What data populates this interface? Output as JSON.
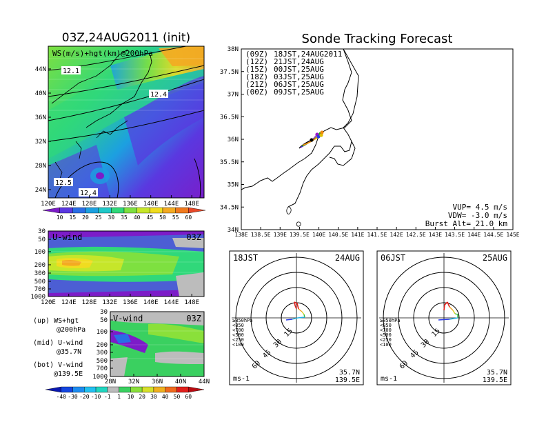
{
  "left_map": {
    "title": "03Z,24AUG2011 (init)",
    "field_label": "WS(m/s)+hgt(km)@200hPa",
    "lon_ticks": [
      "120E",
      "124E",
      "128E",
      "132E",
      "136E",
      "140E",
      "144E",
      "148E"
    ],
    "lat_ticks": [
      "44N",
      "40N",
      "36N",
      "32N",
      "28N",
      "24N"
    ],
    "contour_labels": [
      "12.1",
      "12.4",
      "12.5",
      "12.4"
    ],
    "colorbar_labels": [
      "10",
      "15",
      "20",
      "25",
      "30",
      "35",
      "40",
      "45",
      "50",
      "55",
      "60"
    ],
    "colorbar_colors": [
      "#7c1cc8",
      "#5a38e0",
      "#2a6ee6",
      "#1ca0e0",
      "#20c8c8",
      "#30d87a",
      "#7ee040",
      "#c6e62a",
      "#f0dc20",
      "#f3aa22",
      "#f07a1e",
      "#e84828"
    ]
  },
  "u_wind": {
    "label": "U-wind",
    "time": "03Z",
    "p_ticks": [
      "30",
      "50",
      "100",
      "200",
      "300",
      "500",
      "700",
      "1000"
    ],
    "lon_ticks": [
      "120E",
      "124E",
      "128E",
      "132E",
      "136E",
      "140E",
      "144E",
      "148E"
    ]
  },
  "v_wind": {
    "label": "V-wind",
    "time": "03Z",
    "p_ticks": [
      "30",
      "50",
      "100",
      "200",
      "300",
      "500",
      "700",
      "1000"
    ],
    "lat_ticks": [
      "28N",
      "32N",
      "36N",
      "40N",
      "44N"
    ],
    "colorbar_labels": [
      "-40",
      "-30",
      "-20",
      "-10",
      "-1",
      "1",
      "10",
      "20",
      "30",
      "40",
      "50",
      "60"
    ],
    "colorbar_colors": [
      "#0a18b0",
      "#1446e0",
      "#1c8cf0",
      "#22c0f0",
      "#20d6c0",
      "#bcbcbc",
      "#3ad060",
      "#8ae03a",
      "#d6e02a",
      "#f0b020",
      "#f06a1e",
      "#e0201c",
      "#b80a10"
    ]
  },
  "legend_notes": {
    "up": "(up) WS+hgt",
    "up_sub": "@200hPa",
    "mid": "(mid) U-wind",
    "mid_sub": "@35.7N",
    "bot": "(bot) V-wind",
    "bot_sub": "@139.5E"
  },
  "sonde": {
    "title": "Sonde Tracking Forecast",
    "launches": [
      {
        "utc": "(09Z)",
        "jst": "18JST,24AUG2011",
        "color": "#000000"
      },
      {
        "utc": "(12Z)",
        "jst": "21JST,24AUG",
        "color": "#9a18c8"
      },
      {
        "utc": "(15Z)",
        "jst": "00JST,25AUG",
        "color": "#2a3ae6"
      },
      {
        "utc": "(18Z)",
        "jst": "03JST,25AUG",
        "color": "#18a818"
      },
      {
        "utc": "(21Z)",
        "jst": "06JST,25AUG",
        "color": "#e0c000"
      },
      {
        "utc": "(00Z)",
        "jst": "09JST,25AUG",
        "color": "#f08a10"
      }
    ],
    "lat_ticks": [
      "38N",
      "37.5N",
      "37N",
      "36.5N",
      "36N",
      "35.5N",
      "35N",
      "34.5N",
      "34N"
    ],
    "lon_ticks": [
      "138E",
      "138.5E",
      "139E",
      "139.5E",
      "140E",
      "140.5E",
      "141E",
      "141.5E",
      "142E",
      "142.5E",
      "143E",
      "143.5E",
      "144E",
      "144.5E",
      "145E"
    ],
    "vup": "VUP= 4.5 m/s",
    "vdw": "VDW= -3.0 m/s",
    "burst": "Burst Alt= 21.0 km"
  },
  "hodo_left": {
    "time": "18JST",
    "date": "24AUG",
    "ring_labels": [
      "15",
      "30",
      "45",
      "60"
    ],
    "units": "ms-1",
    "lat": "35.7N",
    "lon": "139.5E"
  },
  "hodo_right": {
    "time": "06JST",
    "date": "25AUG",
    "ring_labels": [
      "15",
      "30",
      "45",
      "60"
    ],
    "units": "ms-1",
    "lat": "35.7N",
    "lon": "139.5E"
  },
  "hodo_levels": [
    {
      "label": "≥850hPa",
      "color": "#e0201c"
    },
    {
      "label": "<850",
      "color": "#f0a020"
    },
    {
      "label": "<700",
      "color": "#d6d020"
    },
    {
      "label": "<500",
      "color": "#30c030"
    },
    {
      "label": "<250",
      "color": "#20b0e0"
    },
    {
      "label": "<100",
      "color": "#2a3ae6"
    }
  ]
}
